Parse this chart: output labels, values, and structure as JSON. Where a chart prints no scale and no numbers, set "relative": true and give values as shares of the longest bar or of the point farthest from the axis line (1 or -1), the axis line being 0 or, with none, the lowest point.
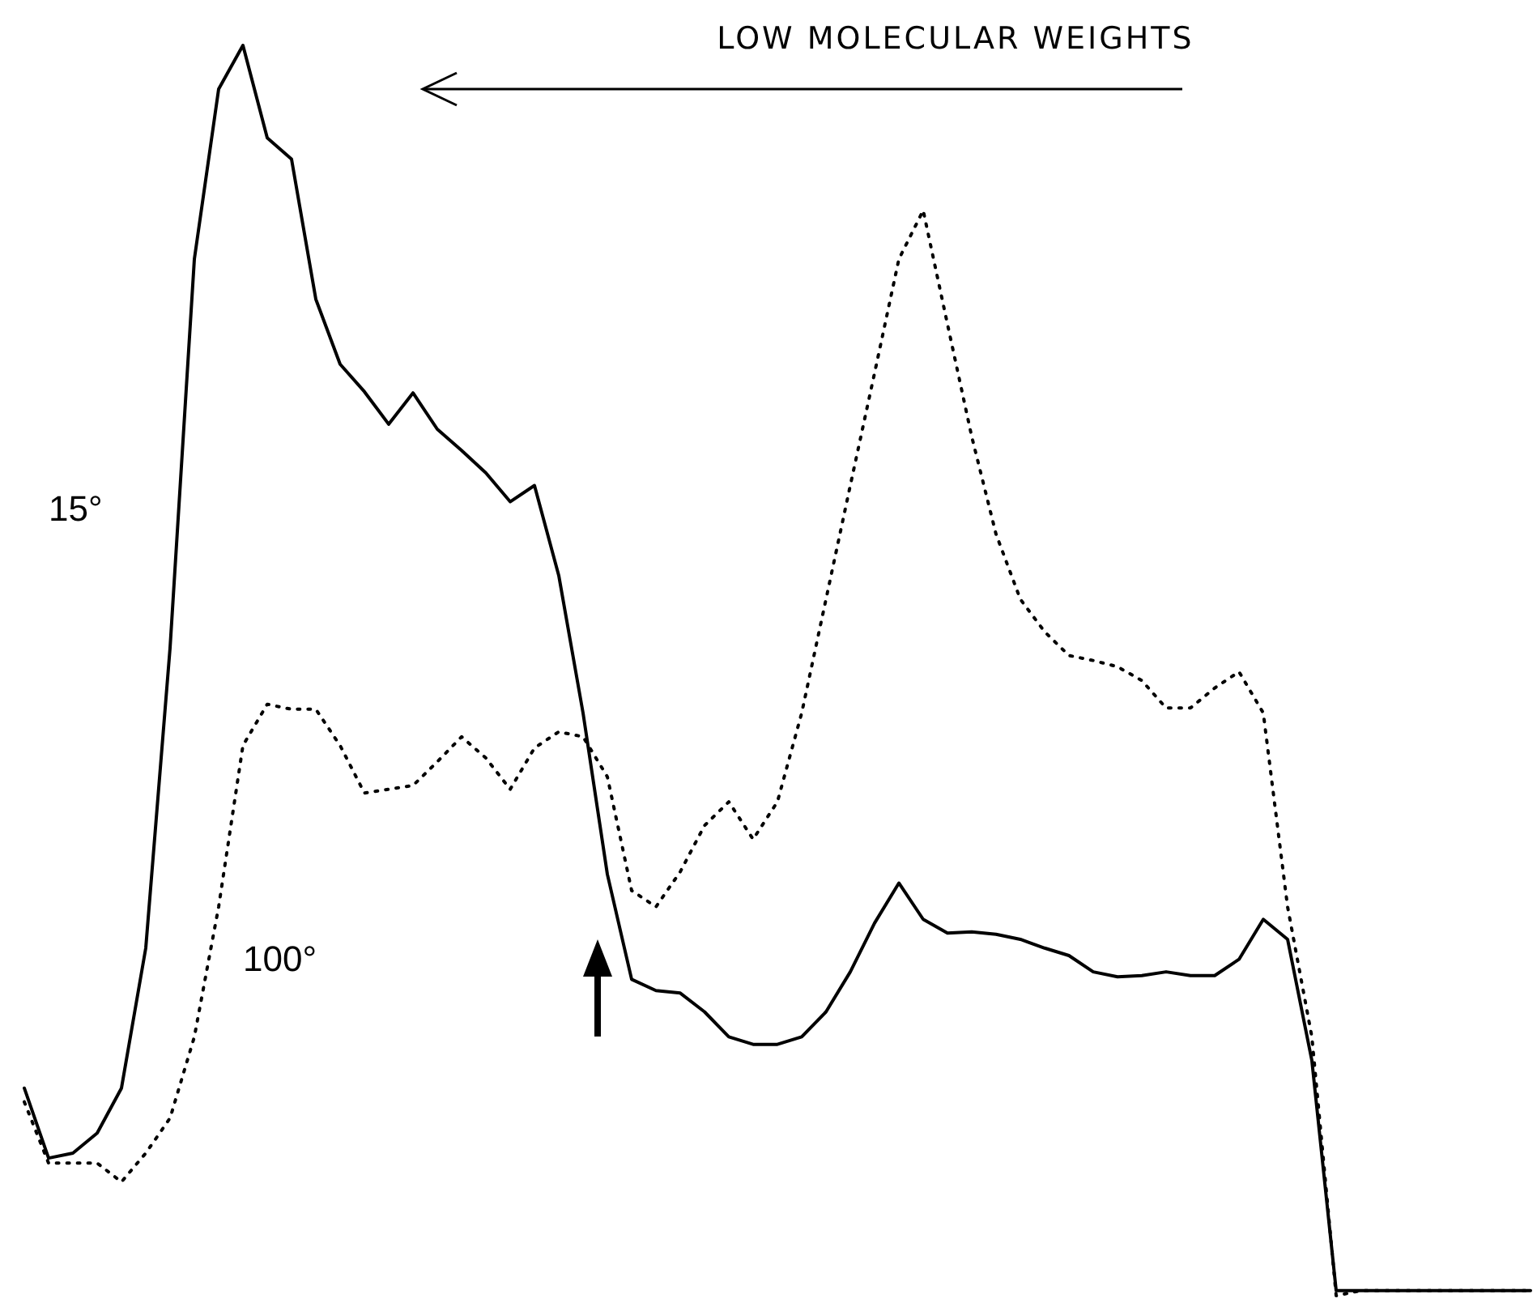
{
  "chart_data": {
    "type": "line",
    "relative": true,
    "legend": false,
    "categories": [
      null,
      null,
      null,
      null,
      null,
      null,
      null,
      null,
      null,
      null,
      null,
      null,
      null,
      null,
      null,
      null,
      null,
      null,
      null,
      null,
      null,
      null,
      null,
      null,
      null,
      null,
      null,
      null,
      null,
      null,
      null,
      null,
      null,
      null,
      null,
      null,
      null,
      null,
      null,
      null,
      null,
      null,
      null,
      null,
      null,
      null,
      null,
      null,
      null,
      null,
      null,
      null,
      null,
      null,
      null,
      null,
      null,
      null,
      null,
      null,
      null,
      null,
      null
    ],
    "series": [
      {
        "name": "15°",
        "color": "#000000",
        "line_style": "solid",
        "values": [
          0.166,
          0.11,
          0.114,
          0.13,
          0.166,
          0.278,
          0.518,
          0.829,
          0.965,
          1.0,
          0.926,
          0.909,
          0.797,
          0.745,
          0.723,
          0.697,
          0.722,
          0.693,
          0.676,
          0.658,
          0.635,
          0.648,
          0.576,
          0.466,
          0.337,
          0.253,
          0.244,
          0.242,
          0.227,
          0.207,
          0.201,
          0.201,
          0.207,
          0.227,
          0.259,
          0.298,
          0.33,
          0.301,
          0.29,
          0.291,
          0.289,
          0.285,
          0.278,
          0.272,
          0.259,
          0.255,
          0.256,
          0.259,
          0.256,
          0.256,
          0.269,
          0.301,
          0.285,
          0.188,
          0.004,
          0.004,
          0.004,
          0.004,
          0.004,
          0.004,
          0.004,
          0.004,
          0.004
        ]
      },
      {
        "name": "100°",
        "color": "#000000",
        "line_style": "dotted",
        "values": [
          0.155,
          0.106,
          0.106,
          0.106,
          0.091,
          0.114,
          0.142,
          0.207,
          0.311,
          0.44,
          0.473,
          0.469,
          0.469,
          0.44,
          0.402,
          0.405,
          0.408,
          0.427,
          0.447,
          0.43,
          0.405,
          0.438,
          0.451,
          0.447,
          0.415,
          0.324,
          0.311,
          0.339,
          0.376,
          0.395,
          0.365,
          0.395,
          0.466,
          0.557,
          0.648,
          0.738,
          0.829,
          0.868,
          0.777,
          0.687,
          0.609,
          0.557,
          0.531,
          0.512,
          0.508,
          0.503,
          0.492,
          0.47,
          0.47,
          0.486,
          0.499,
          0.466,
          0.311,
          0.207,
          0,
          0.004,
          0.004,
          0.004,
          0.004,
          0.004,
          0.004,
          0.004,
          0.004
        ]
      }
    ],
    "annotations": [
      "LOW MOLECULAR WEIGHTS"
    ]
  }
}
